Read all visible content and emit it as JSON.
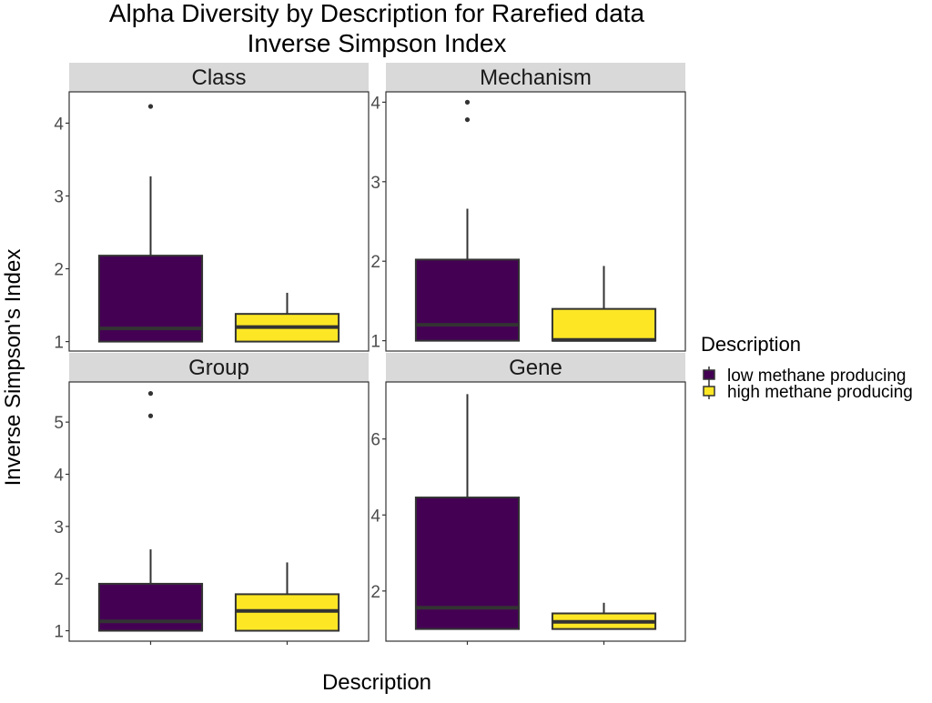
{
  "chart_data": {
    "type": "boxplot",
    "title": "Alpha Diversity by Description for Rarefied data",
    "subtitle": "Inverse Simpson Index",
    "xlabel": "Description",
    "ylabel": "Inverse Simpson's Index",
    "legend": {
      "title": "Description",
      "placement": "right",
      "entries": [
        {
          "label": "low methane producing",
          "color": "#440154"
        },
        {
          "label": "high methane producing",
          "color": "#FDE725"
        }
      ]
    },
    "panels": [
      {
        "facet": "Class",
        "ylim": [
          0.87,
          4.43
        ],
        "yticks": [
          1,
          2,
          3,
          4
        ],
        "boxes": [
          {
            "series": "low methane producing",
            "lower_whisker": 1.0,
            "q1": 1.0,
            "median": 1.18,
            "q3": 2.18,
            "upper_whisker": 3.27,
            "outliers": [
              4.23
            ]
          },
          {
            "series": "high methane producing",
            "lower_whisker": 1.0,
            "q1": 1.0,
            "median": 1.2,
            "q3": 1.38,
            "upper_whisker": 1.67,
            "outliers": []
          }
        ]
      },
      {
        "facet": "Mechanism",
        "ylim": [
          0.87,
          4.13
        ],
        "yticks": [
          1,
          2,
          3,
          4
        ],
        "boxes": [
          {
            "series": "low methane producing",
            "lower_whisker": 1.0,
            "q1": 1.0,
            "median": 1.2,
            "q3": 2.02,
            "upper_whisker": 2.66,
            "outliers": [
              3.78,
              4.0
            ]
          },
          {
            "series": "high methane producing",
            "lower_whisker": 1.0,
            "q1": 1.0,
            "median": 1.01,
            "q3": 1.4,
            "upper_whisker": 1.94,
            "outliers": []
          }
        ]
      },
      {
        "facet": "Group",
        "ylim": [
          0.8,
          5.77
        ],
        "yticks": [
          1,
          2,
          3,
          4,
          5
        ],
        "boxes": [
          {
            "series": "low methane producing",
            "lower_whisker": 1.0,
            "q1": 1.0,
            "median": 1.18,
            "q3": 1.9,
            "upper_whisker": 2.56,
            "outliers": [
              5.12,
              5.55
            ]
          },
          {
            "series": "high methane producing",
            "lower_whisker": 1.0,
            "q1": 1.0,
            "median": 1.38,
            "q3": 1.7,
            "upper_whisker": 2.31,
            "outliers": []
          }
        ]
      },
      {
        "facet": "Gene",
        "ylim": [
          0.68,
          7.5
        ],
        "yticks": [
          2,
          4,
          6
        ],
        "boxes": [
          {
            "series": "low methane producing",
            "lower_whisker": 1.0,
            "q1": 1.0,
            "median": 1.56,
            "q3": 4.46,
            "upper_whisker": 7.18,
            "outliers": []
          },
          {
            "series": "high methane producing",
            "lower_whisker": 1.0,
            "q1": 1.0,
            "median": 1.19,
            "q3": 1.41,
            "upper_whisker": 1.69,
            "outliers": []
          }
        ]
      }
    ],
    "grid": false
  }
}
